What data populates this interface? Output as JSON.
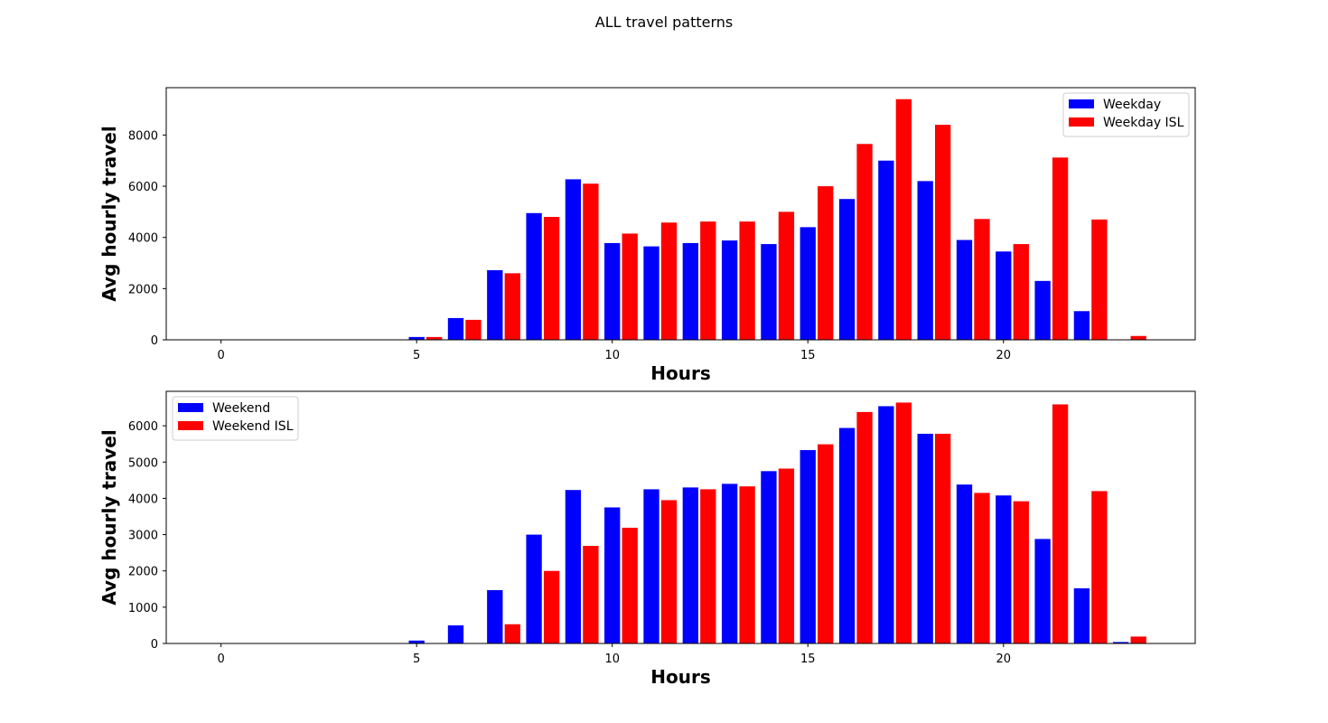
{
  "figure": {
    "suptitle": "ALL travel patterns"
  },
  "chart_data": [
    {
      "type": "bar",
      "xlabel": "Hours",
      "ylabel": "Avg hourly travel",
      "xlim": [
        -1.4,
        24.9
      ],
      "ylim": [
        0,
        9850
      ],
      "xticks": [
        0,
        5,
        10,
        15,
        20
      ],
      "yticks": [
        0,
        2000,
        4000,
        6000,
        8000
      ],
      "legend": "top-right",
      "grid": false,
      "series": [
        {
          "name": "Weekday",
          "color": "#0000ff",
          "offset": 0,
          "x": [
            5,
            6,
            7,
            8,
            9,
            10,
            11,
            12,
            13,
            14,
            15,
            16,
            17,
            18,
            19,
            20,
            21,
            22
          ],
          "values": [
            110,
            850,
            2720,
            4950,
            6270,
            3780,
            3650,
            3780,
            3880,
            3740,
            4400,
            5500,
            7000,
            6200,
            3900,
            3450,
            2300,
            1120
          ]
        },
        {
          "name": "Weekday ISL",
          "color": "#ff0000",
          "offset": 0.45,
          "x": [
            5,
            6,
            7,
            8,
            9,
            10,
            11,
            12,
            13,
            14,
            15,
            16,
            17,
            18,
            19,
            20,
            21,
            22,
            23
          ],
          "values": [
            110,
            780,
            2600,
            4800,
            6100,
            4150,
            4580,
            4620,
            4620,
            5000,
            6000,
            7650,
            9400,
            8400,
            4720,
            3740,
            7120,
            4700,
            150
          ]
        }
      ]
    },
    {
      "type": "bar",
      "xlabel": "Hours",
      "ylabel": "Avg hourly travel",
      "xlim": [
        -1.4,
        24.9
      ],
      "ylim": [
        0,
        6950
      ],
      "xticks": [
        0,
        5,
        10,
        15,
        20
      ],
      "yticks": [
        0,
        1000,
        2000,
        3000,
        4000,
        5000,
        6000
      ],
      "legend": "top-left",
      "grid": false,
      "series": [
        {
          "name": "Weekend",
          "color": "#0000ff",
          "offset": 0,
          "x": [
            5,
            6,
            7,
            8,
            9,
            10,
            11,
            12,
            13,
            14,
            15,
            16,
            17,
            18,
            19,
            20,
            21,
            22,
            23
          ],
          "values": [
            80,
            500,
            1470,
            3000,
            4230,
            3750,
            4250,
            4300,
            4400,
            4750,
            5330,
            5940,
            6540,
            5780,
            4380,
            4080,
            2880,
            1520,
            40
          ]
        },
        {
          "name": "Weekend ISL",
          "color": "#ff0000",
          "offset": 0.45,
          "x": [
            7,
            8,
            9,
            10,
            11,
            12,
            13,
            14,
            15,
            16,
            17,
            18,
            19,
            20,
            21,
            22,
            23
          ],
          "values": [
            530,
            2000,
            2690,
            3190,
            3950,
            4250,
            4330,
            4820,
            5490,
            6380,
            6640,
            5780,
            4150,
            3920,
            6590,
            4200,
            190
          ]
        }
      ]
    }
  ]
}
